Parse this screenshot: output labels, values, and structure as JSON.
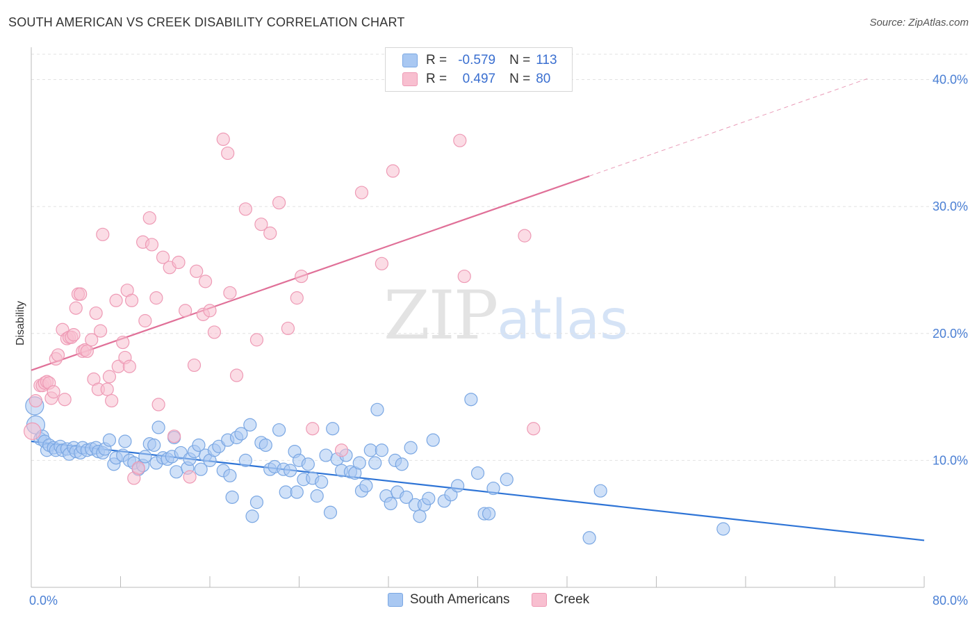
{
  "header": {
    "title": "SOUTH AMERICAN VS CREEK DISABILITY CORRELATION CHART",
    "source": "Source: ZipAtlas.com"
  },
  "watermark": {
    "zip": "ZIP",
    "atlas": "atlas"
  },
  "legend": {
    "rows": [
      {
        "r_label": "R =",
        "r_value": "-0.579",
        "n_label": "N =",
        "n_value": "113"
      },
      {
        "r_label": "R =",
        "r_value": "0.497",
        "n_label": "N =",
        "n_value": "80"
      }
    ]
  },
  "bottom_legend": [
    "South Americans",
    "Creek"
  ],
  "colors": {
    "south_americans_fill": "#a9c8f2",
    "south_americans_stroke": "#7aa7e3",
    "south_americans_line": "#2e74d6",
    "creek_fill": "#f8bfd0",
    "creek_stroke": "#ee9ab5",
    "creek_line": "#e07098",
    "tick_text": "#4a7fd4",
    "grid": "#e2e2e2"
  },
  "chart_data": {
    "type": "scatter",
    "title": "SOUTH AMERICAN VS CREEK DISABILITY CORRELATION CHART",
    "ylabel": "Disability",
    "xlabel": "",
    "xlim": [
      0,
      80
    ],
    "ylim": [
      0,
      42
    ],
    "x_tick_labels": [
      "0.0%",
      "80.0%"
    ],
    "y_ticks": [
      10,
      20,
      30,
      40
    ],
    "y_tick_labels": [
      "10.0%",
      "20.0%",
      "30.0%",
      "40.0%"
    ],
    "grid": true,
    "series": [
      {
        "name": "South Americans",
        "r": -0.579,
        "n": 113,
        "trend": {
          "x0": 0,
          "y0": 11.5,
          "x1": 80,
          "y1": 3.7
        },
        "points": [
          [
            0.3,
            14.3
          ],
          [
            0.4,
            12.8
          ],
          [
            0.8,
            11.7
          ],
          [
            1.0,
            11.9
          ],
          [
            1.2,
            11.5
          ],
          [
            1.4,
            10.8
          ],
          [
            1.6,
            11.2
          ],
          [
            2.0,
            11.0
          ],
          [
            2.2,
            10.8
          ],
          [
            2.6,
            11.1
          ],
          [
            2.8,
            10.8
          ],
          [
            3.2,
            10.9
          ],
          [
            3.4,
            10.5
          ],
          [
            3.8,
            11.0
          ],
          [
            4.0,
            10.7
          ],
          [
            4.4,
            10.6
          ],
          [
            4.6,
            11.0
          ],
          [
            5.0,
            10.8
          ],
          [
            5.4,
            10.9
          ],
          [
            5.8,
            11.0
          ],
          [
            6.0,
            10.7
          ],
          [
            6.4,
            10.6
          ],
          [
            6.6,
            10.9
          ],
          [
            7.0,
            11.6
          ],
          [
            7.4,
            9.7
          ],
          [
            7.6,
            10.2
          ],
          [
            8.2,
            10.4
          ],
          [
            8.4,
            11.5
          ],
          [
            8.8,
            10.0
          ],
          [
            9.2,
            9.8
          ],
          [
            9.6,
            9.3
          ],
          [
            10.0,
            9.6
          ],
          [
            10.2,
            10.3
          ],
          [
            10.6,
            11.3
          ],
          [
            11.0,
            11.2
          ],
          [
            11.2,
            9.8
          ],
          [
            11.4,
            12.6
          ],
          [
            11.8,
            10.2
          ],
          [
            12.2,
            10.1
          ],
          [
            12.6,
            10.3
          ],
          [
            12.8,
            11.8
          ],
          [
            13.0,
            9.1
          ],
          [
            13.4,
            10.6
          ],
          [
            14.0,
            9.4
          ],
          [
            14.2,
            10.1
          ],
          [
            14.6,
            10.7
          ],
          [
            15.0,
            11.2
          ],
          [
            15.2,
            9.3
          ],
          [
            15.6,
            10.4
          ],
          [
            16.0,
            10.0
          ],
          [
            16.4,
            10.8
          ],
          [
            16.8,
            11.1
          ],
          [
            17.2,
            9.2
          ],
          [
            17.6,
            11.6
          ],
          [
            17.8,
            8.8
          ],
          [
            18.0,
            7.1
          ],
          [
            18.4,
            11.8
          ],
          [
            18.8,
            12.1
          ],
          [
            19.2,
            10.0
          ],
          [
            19.6,
            12.8
          ],
          [
            19.8,
            5.6
          ],
          [
            20.2,
            6.7
          ],
          [
            20.6,
            11.4
          ],
          [
            21.0,
            11.2
          ],
          [
            21.4,
            9.3
          ],
          [
            21.8,
            9.5
          ],
          [
            22.2,
            12.4
          ],
          [
            22.6,
            9.3
          ],
          [
            22.8,
            7.5
          ],
          [
            23.2,
            9.2
          ],
          [
            23.6,
            10.7
          ],
          [
            23.8,
            7.5
          ],
          [
            24.0,
            10.0
          ],
          [
            24.4,
            8.5
          ],
          [
            24.8,
            9.7
          ],
          [
            25.2,
            8.6
          ],
          [
            25.6,
            7.2
          ],
          [
            26.0,
            8.3
          ],
          [
            26.4,
            10.4
          ],
          [
            26.8,
            5.9
          ],
          [
            27.0,
            12.5
          ],
          [
            27.4,
            10.1
          ],
          [
            27.8,
            9.2
          ],
          [
            28.2,
            10.4
          ],
          [
            28.6,
            9.1
          ],
          [
            29.0,
            9.0
          ],
          [
            29.4,
            9.8
          ],
          [
            29.6,
            7.6
          ],
          [
            30.0,
            8.0
          ],
          [
            30.4,
            10.8
          ],
          [
            30.8,
            9.8
          ],
          [
            31.0,
            14.0
          ],
          [
            31.4,
            10.8
          ],
          [
            31.8,
            7.2
          ],
          [
            32.2,
            6.6
          ],
          [
            32.6,
            10.0
          ],
          [
            32.8,
            7.5
          ],
          [
            33.2,
            9.7
          ],
          [
            33.6,
            7.1
          ],
          [
            34.0,
            11.0
          ],
          [
            34.4,
            6.5
          ],
          [
            34.8,
            5.6
          ],
          [
            35.2,
            6.5
          ],
          [
            35.6,
            7.0
          ],
          [
            36.0,
            11.6
          ],
          [
            37.0,
            6.8
          ],
          [
            37.6,
            7.3
          ],
          [
            38.2,
            8.0
          ],
          [
            39.4,
            14.8
          ],
          [
            40.0,
            9.0
          ],
          [
            40.6,
            5.8
          ],
          [
            41.0,
            5.8
          ],
          [
            41.4,
            7.8
          ],
          [
            42.6,
            8.5
          ],
          [
            50.0,
            3.9
          ],
          [
            51.0,
            7.6
          ],
          [
            62.0,
            4.6
          ]
        ]
      },
      {
        "name": "Creek",
        "r": 0.497,
        "n": 80,
        "trend": {
          "x0": 0,
          "y0": 17.1,
          "x1": 50,
          "y1": 32.4,
          "dashed_to": {
            "x": 75,
            "y": 40.1
          }
        },
        "points": [
          [
            0.1,
            12.3
          ],
          [
            0.4,
            14.7
          ],
          [
            0.8,
            15.9
          ],
          [
            1.0,
            15.9
          ],
          [
            1.2,
            16.1
          ],
          [
            1.4,
            16.2
          ],
          [
            1.6,
            16.1
          ],
          [
            1.8,
            14.9
          ],
          [
            2.0,
            15.4
          ],
          [
            2.2,
            18.0
          ],
          [
            2.4,
            18.3
          ],
          [
            2.8,
            20.3
          ],
          [
            3.0,
            14.8
          ],
          [
            3.2,
            19.6
          ],
          [
            3.4,
            19.7
          ],
          [
            3.6,
            19.7
          ],
          [
            3.8,
            19.9
          ],
          [
            4.0,
            22.0
          ],
          [
            4.2,
            23.1
          ],
          [
            4.4,
            23.1
          ],
          [
            4.6,
            18.6
          ],
          [
            4.8,
            18.7
          ],
          [
            5.0,
            18.6
          ],
          [
            5.4,
            19.5
          ],
          [
            5.6,
            16.4
          ],
          [
            5.8,
            21.6
          ],
          [
            6.0,
            15.6
          ],
          [
            6.2,
            20.2
          ],
          [
            6.4,
            27.8
          ],
          [
            6.8,
            15.6
          ],
          [
            7.0,
            16.6
          ],
          [
            7.2,
            14.7
          ],
          [
            7.6,
            22.6
          ],
          [
            7.8,
            17.4
          ],
          [
            8.2,
            19.3
          ],
          [
            8.4,
            18.1
          ],
          [
            8.6,
            23.4
          ],
          [
            8.8,
            17.4
          ],
          [
            9.0,
            22.6
          ],
          [
            9.2,
            8.6
          ],
          [
            9.6,
            9.4
          ],
          [
            10.0,
            27.2
          ],
          [
            10.2,
            21.0
          ],
          [
            10.6,
            29.1
          ],
          [
            10.8,
            27.0
          ],
          [
            11.2,
            22.8
          ],
          [
            11.4,
            14.4
          ],
          [
            11.8,
            26.0
          ],
          [
            12.4,
            25.2
          ],
          [
            12.8,
            11.9
          ],
          [
            13.2,
            25.6
          ],
          [
            13.8,
            21.8
          ],
          [
            14.2,
            8.7
          ],
          [
            14.6,
            17.5
          ],
          [
            14.8,
            24.9
          ],
          [
            15.4,
            21.5
          ],
          [
            15.6,
            24.1
          ],
          [
            16.0,
            21.8
          ],
          [
            16.4,
            20.1
          ],
          [
            17.2,
            35.3
          ],
          [
            17.6,
            34.2
          ],
          [
            17.8,
            23.2
          ],
          [
            18.4,
            16.7
          ],
          [
            19.2,
            29.8
          ],
          [
            20.2,
            19.5
          ],
          [
            20.6,
            28.6
          ],
          [
            21.4,
            27.9
          ],
          [
            22.2,
            30.3
          ],
          [
            23.0,
            20.4
          ],
          [
            23.8,
            22.8
          ],
          [
            24.2,
            24.5
          ],
          [
            25.2,
            12.5
          ],
          [
            27.8,
            10.8
          ],
          [
            29.6,
            31.1
          ],
          [
            31.4,
            25.5
          ],
          [
            32.4,
            32.8
          ],
          [
            38.4,
            35.2
          ],
          [
            38.8,
            24.5
          ],
          [
            44.2,
            27.7
          ],
          [
            45.0,
            12.5
          ]
        ]
      }
    ]
  }
}
